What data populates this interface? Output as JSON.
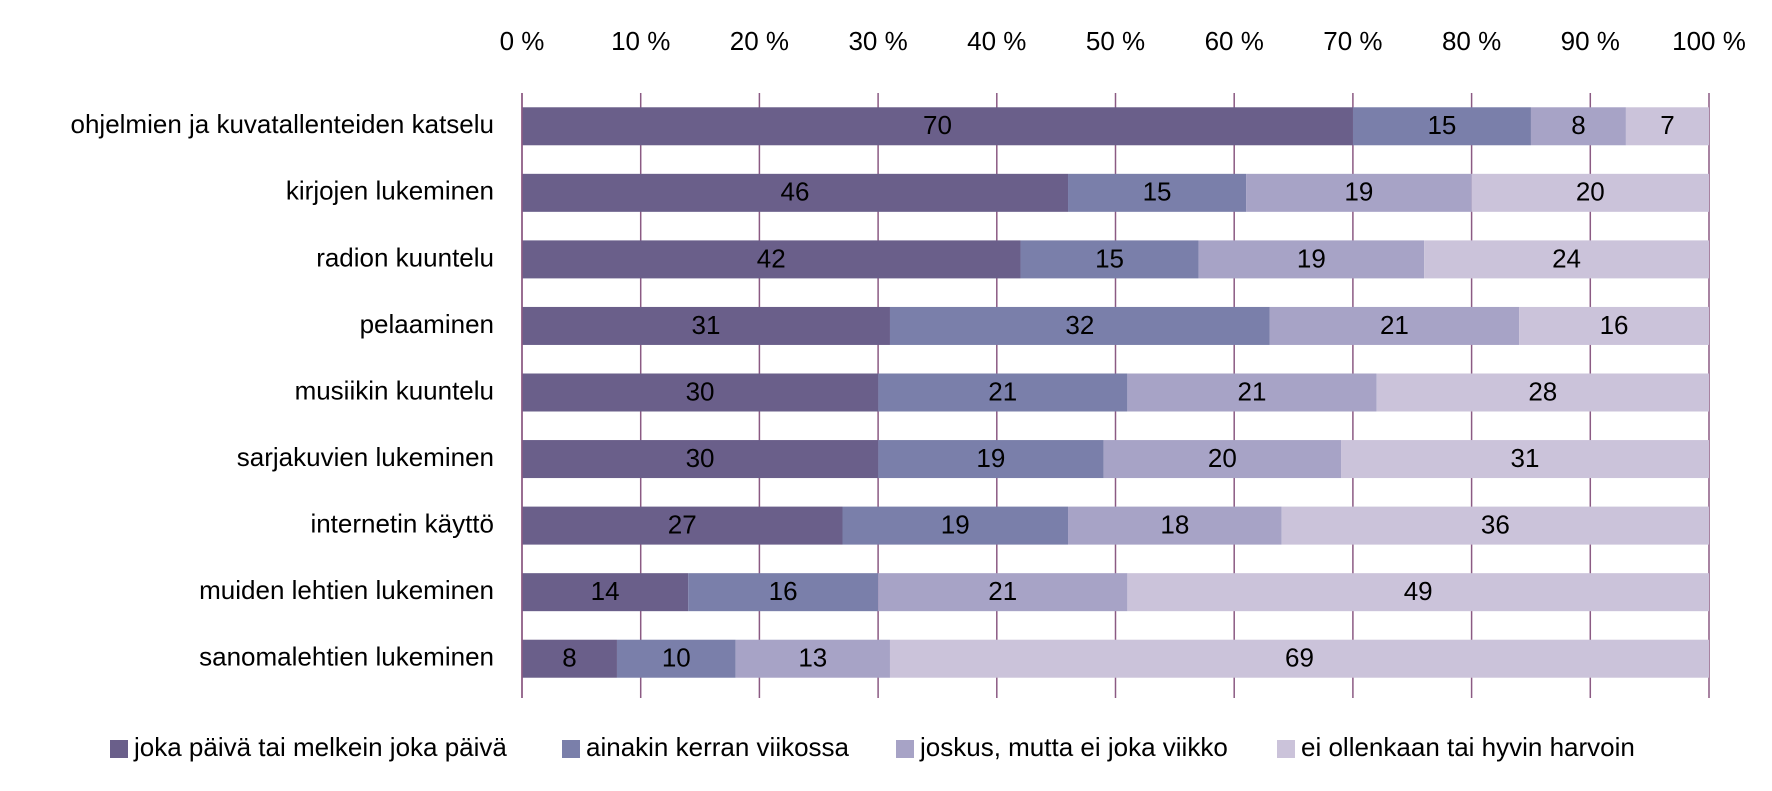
{
  "chart_data": {
    "type": "bar",
    "horizontal": true,
    "stacked": true,
    "categories": [
      "ohjelmien ja kuvatallenteiden katselu",
      "kirjojen lukeminen",
      "radion kuuntelu",
      "pelaaminen",
      "musiikin kuuntelu",
      "sarjakuvien lukeminen",
      "internetin käyttö",
      "muiden lehtien lukeminen",
      "sanomalehtien lukeminen"
    ],
    "series": [
      {
        "name": "joka päivä tai melkein joka päivä",
        "color": "#6a5f8a",
        "values": [
          70,
          46,
          42,
          31,
          30,
          30,
          27,
          14,
          8
        ]
      },
      {
        "name": "ainakin kerran viikossa",
        "color": "#7a7faa",
        "values": [
          15,
          15,
          15,
          32,
          21,
          19,
          19,
          16,
          10
        ]
      },
      {
        "name": "joskus, mutta ei joka viikko",
        "color": "#a7a3c6",
        "values": [
          8,
          19,
          19,
          21,
          21,
          20,
          18,
          21,
          13
        ]
      },
      {
        "name": "ei ollenkaan tai hyvin harvoin",
        "color": "#cbc3da",
        "values": [
          7,
          20,
          24,
          16,
          28,
          31,
          36,
          49,
          69
        ]
      }
    ],
    "xlim": [
      0,
      100
    ],
    "xticks": [
      {
        "value": 0,
        "label": "0 %"
      },
      {
        "value": 10,
        "label": "10 %"
      },
      {
        "value": 20,
        "label": "20 %"
      },
      {
        "value": 30,
        "label": "30 %"
      },
      {
        "value": 40,
        "label": "40 %"
      },
      {
        "value": 50,
        "label": "50 %"
      },
      {
        "value": 60,
        "label": "60 %"
      },
      {
        "value": 70,
        "label": "70 %"
      },
      {
        "value": 80,
        "label": "80 %"
      },
      {
        "value": 90,
        "label": "90 %"
      },
      {
        "value": 100,
        "label": "100 %"
      }
    ],
    "grid": true,
    "legend": "bottom"
  }
}
